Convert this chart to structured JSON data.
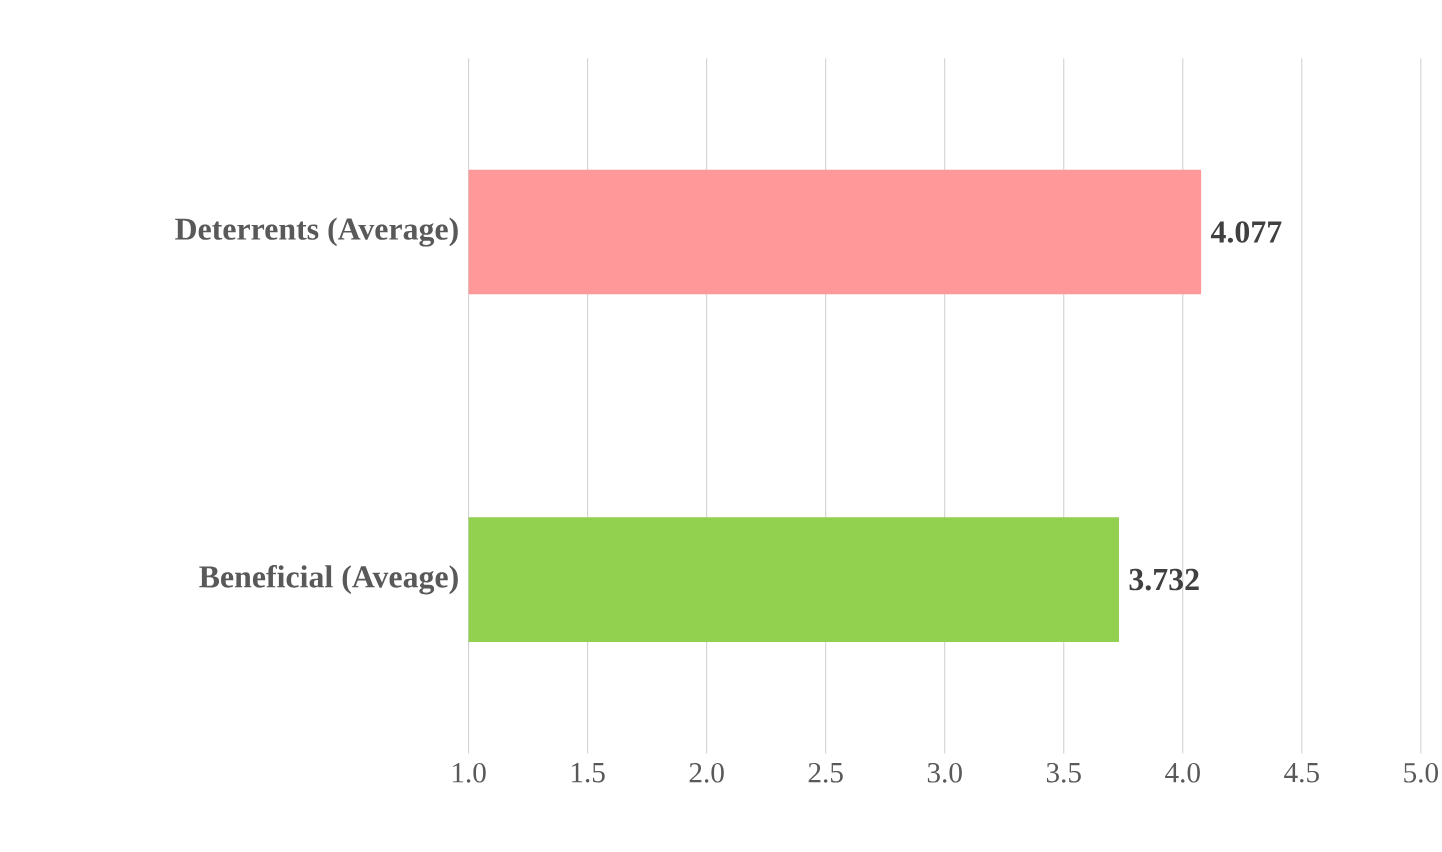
{
  "chart_data": {
    "type": "bar",
    "orientation": "horizontal",
    "categories": [
      "Deterrents (Average)",
      "Beneficial (Aveage)"
    ],
    "values": [
      4.077,
      3.732
    ],
    "colors": [
      "#ff9999",
      "#92d050"
    ],
    "xlim": [
      1,
      5
    ],
    "xticks": [
      {
        "value": 1,
        "label": "1.0"
      },
      {
        "value": 1.5,
        "label": "1.5"
      },
      {
        "value": 2,
        "label": "2.0"
      },
      {
        "value": 2.5,
        "label": "2.5"
      },
      {
        "value": 3,
        "label": "3.0"
      },
      {
        "value": 3.5,
        "label": "3.5"
      },
      {
        "value": 4,
        "label": "4.0"
      },
      {
        "value": 4.5,
        "label": "4.5"
      },
      {
        "value": 5,
        "label": "5.0"
      }
    ],
    "grid": "x",
    "data_labels": true
  }
}
